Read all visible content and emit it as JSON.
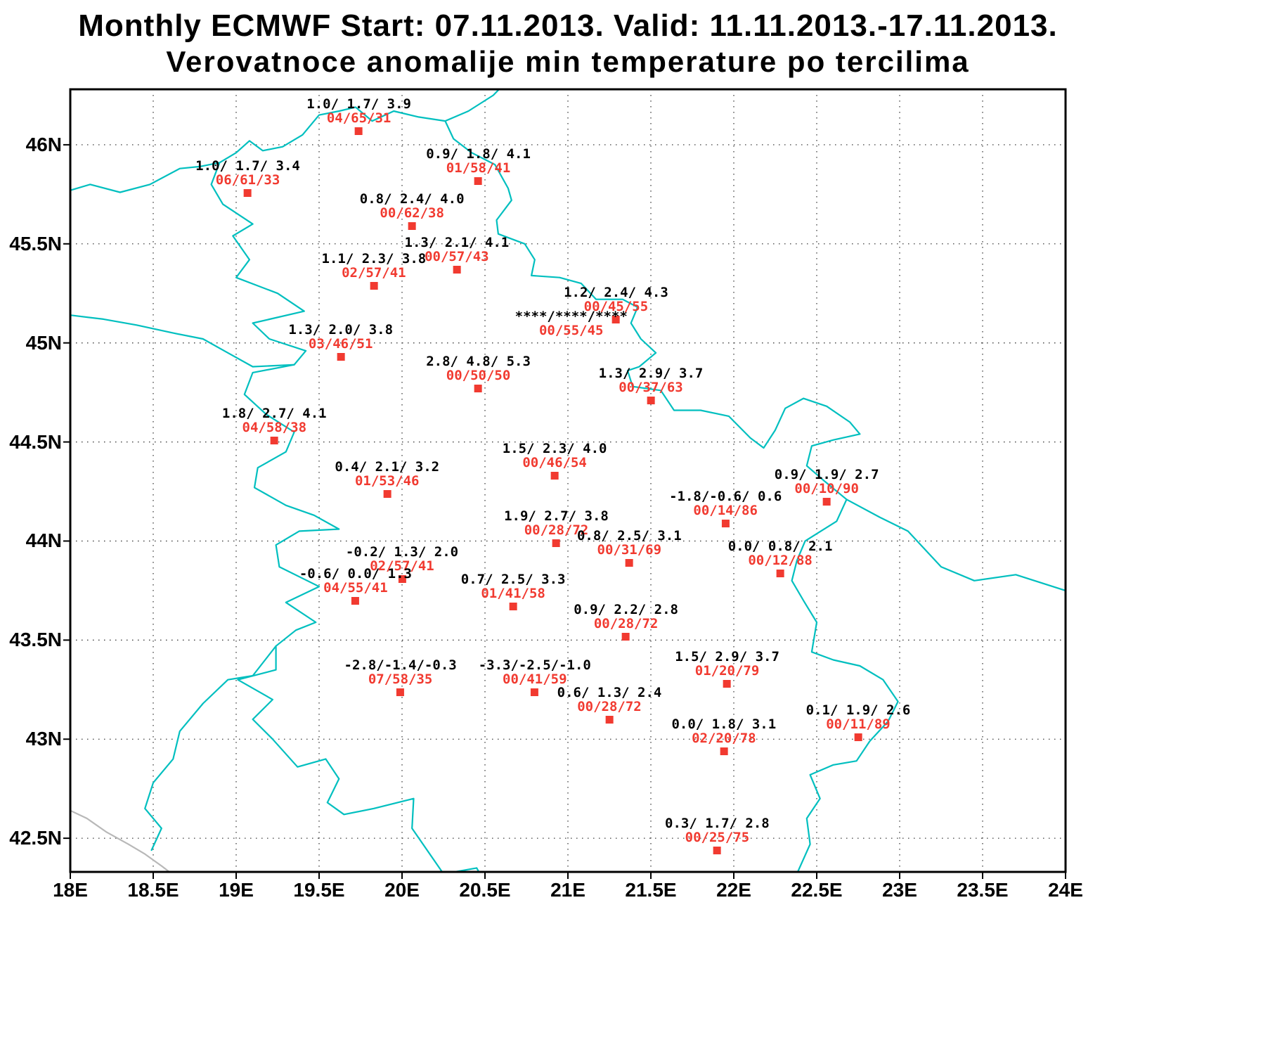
{
  "colors": {
    "map_line": "#00bfbf",
    "coastline": "#b8b8b8",
    "marker": "#f13a30",
    "prob_text": "#f13a30",
    "tercile_text": "#000000",
    "grid": "#3c3c3c",
    "frame": "#000000"
  },
  "chart_data": {
    "type": "scatter",
    "title": "Monthly ECMWF Start: 07.11.2013. Valid: 11.11.2013.-17.11.2013.",
    "subtitle": "Verovatnoce anomalije min temperature po tercilima",
    "lon_range": [
      18,
      24
    ],
    "lat_range": [
      42.33,
      46.28
    ],
    "grid": "dotted 0.5 degree",
    "x_ticks": [
      {
        "lon": 18,
        "label": "18E"
      },
      {
        "lon": 18.5,
        "label": "18.5E"
      },
      {
        "lon": 19,
        "label": "19E"
      },
      {
        "lon": 19.5,
        "label": "19.5E"
      },
      {
        "lon": 20,
        "label": "20E"
      },
      {
        "lon": 20.5,
        "label": "20.5E"
      },
      {
        "lon": 21,
        "label": "21E"
      },
      {
        "lon": 21.5,
        "label": "21.5E"
      },
      {
        "lon": 22,
        "label": "22E"
      },
      {
        "lon": 22.5,
        "label": "22.5E"
      },
      {
        "lon": 23,
        "label": "23E"
      },
      {
        "lon": 23.5,
        "label": "23.5E"
      },
      {
        "lon": 24,
        "label": "24E"
      }
    ],
    "y_ticks": [
      {
        "lat": 46,
        "label": "46N"
      },
      {
        "lat": 45.5,
        "label": "45.5N"
      },
      {
        "lat": 45,
        "label": "45N"
      },
      {
        "lat": 44.5,
        "label": "44.5N"
      },
      {
        "lat": 44,
        "label": "44N"
      },
      {
        "lat": 43.5,
        "label": "43.5N"
      },
      {
        "lat": 43,
        "label": "43N"
      },
      {
        "lat": 42.5,
        "label": "42.5N"
      }
    ],
    "stations": [
      {
        "lon": 19.74,
        "lat": 46.07,
        "terciles": "1.0/ 1.7/ 3.9",
        "probs": "04/65/31"
      },
      {
        "lon": 19.07,
        "lat": 45.76,
        "terciles": "1.0/ 1.7/ 3.4",
        "probs": "06/61/33"
      },
      {
        "lon": 20.46,
        "lat": 45.82,
        "terciles": "0.9/ 1.8/ 4.1",
        "probs": "01/58/41"
      },
      {
        "lon": 20.06,
        "lat": 45.59,
        "terciles": "0.8/ 2.4/ 4.0",
        "probs": "00/62/38"
      },
      {
        "lon": 20.33,
        "lat": 45.37,
        "terciles": "1.3/ 2.1/ 4.1",
        "probs": "00/57/43"
      },
      {
        "lon": 19.83,
        "lat": 45.29,
        "terciles": "1.1/ 2.3/ 3.8",
        "probs": "02/57/41"
      },
      {
        "lon": 21.29,
        "lat": 45.12,
        "terciles": "1.2/ 2.4/ 4.3",
        "probs": "00/45/55"
      },
      {
        "lon": 21.02,
        "lat": 45.0,
        "terciles": "****/****/****",
        "probs": "00/55/45",
        "marker": false
      },
      {
        "lon": 19.63,
        "lat": 44.93,
        "terciles": "1.3/ 2.0/ 3.8",
        "probs": "03/46/51"
      },
      {
        "lon": 20.46,
        "lat": 44.77,
        "terciles": "2.8/ 4.8/ 5.3",
        "probs": "00/50/50"
      },
      {
        "lon": 21.5,
        "lat": 44.71,
        "terciles": "1.3/ 2.9/ 3.7",
        "probs": "00/37/63"
      },
      {
        "lon": 19.23,
        "lat": 44.51,
        "terciles": "1.8/ 2.7/ 4.1",
        "probs": "04/58/38"
      },
      {
        "lon": 20.92,
        "lat": 44.33,
        "terciles": "1.5/ 2.3/ 4.0",
        "probs": "00/46/54"
      },
      {
        "lon": 19.91,
        "lat": 44.24,
        "terciles": "0.4/ 2.1/ 3.2",
        "probs": "01/53/46"
      },
      {
        "lon": 22.56,
        "lat": 44.2,
        "terciles": "0.9/ 1.9/ 2.7",
        "probs": "00/10/90"
      },
      {
        "lon": 21.95,
        "lat": 44.09,
        "terciles": "-1.8/-0.6/ 0.6",
        "probs": "00/14/86"
      },
      {
        "lon": 20.93,
        "lat": 43.99,
        "terciles": "1.9/ 2.7/ 3.8",
        "probs": "00/28/72"
      },
      {
        "lon": 21.37,
        "lat": 43.89,
        "terciles": "0.8/ 2.5/ 3.1",
        "probs": "00/31/69"
      },
      {
        "lon": 22.28,
        "lat": 43.84,
        "terciles": "0.0/ 0.8/ 2.1",
        "probs": "00/12/88"
      },
      {
        "lon": 20.0,
        "lat": 43.81,
        "terciles": "-0.2/ 1.3/ 2.0",
        "probs": "02/57/41"
      },
      {
        "lon": 19.72,
        "lat": 43.7,
        "terciles": "-0.6/ 0.0/ 1.3",
        "probs": "04/55/41"
      },
      {
        "lon": 20.67,
        "lat": 43.67,
        "terciles": "0.7/ 2.5/ 3.3",
        "probs": "01/41/58"
      },
      {
        "lon": 21.35,
        "lat": 43.52,
        "terciles": "0.9/ 2.2/ 2.8",
        "probs": "00/28/72"
      },
      {
        "lon": 19.99,
        "lat": 43.24,
        "terciles": "-2.8/-1.4/-0.3",
        "probs": "07/58/35"
      },
      {
        "lon": 20.8,
        "lat": 43.24,
        "terciles": "-3.3/-2.5/-1.0",
        "probs": "00/41/59"
      },
      {
        "lon": 21.96,
        "lat": 43.28,
        "terciles": "1.5/ 2.9/ 3.7",
        "probs": "01/20/79"
      },
      {
        "lon": 21.25,
        "lat": 43.1,
        "terciles": "0.6/ 1.3/ 2.4",
        "probs": "00/28/72"
      },
      {
        "lon": 21.94,
        "lat": 42.94,
        "terciles": "0.0/ 1.8/ 3.1",
        "probs": "02/20/78"
      },
      {
        "lon": 22.75,
        "lat": 43.01,
        "terciles": "0.1/ 1.9/ 2.6",
        "probs": "00/11/89"
      },
      {
        "lon": 21.9,
        "lat": 42.44,
        "terciles": "0.3/ 1.7/ 2.8",
        "probs": "00/25/75"
      }
    ]
  }
}
